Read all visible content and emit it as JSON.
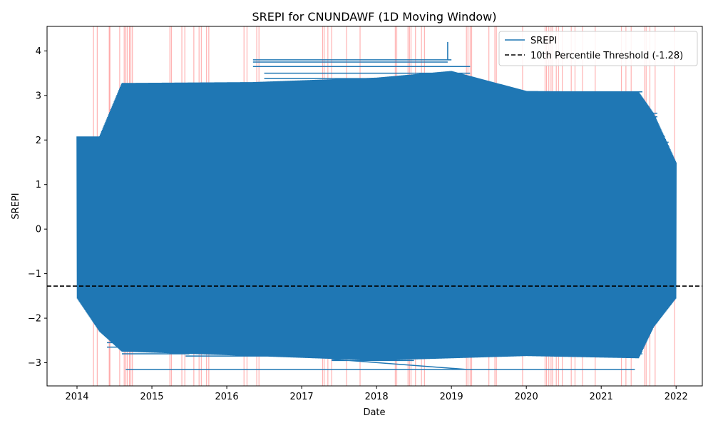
{
  "chart_data": {
    "type": "line",
    "title": "SREPI for CNUNDAWF (1D Moving Window)",
    "xlabel": "Date",
    "ylabel": "SREPI",
    "x_ticks": [
      "2014",
      "2015",
      "2016",
      "2017",
      "2018",
      "2019",
      "2020",
      "2021",
      "2022"
    ],
    "y_ticks": [
      "−3",
      "−2",
      "−1",
      "0",
      "1",
      "2",
      "3",
      "4"
    ],
    "x_range_years": [
      2013.6,
      2022.35
    ],
    "y_range": [
      -3.52,
      4.55
    ],
    "grid": false,
    "legend_position": "upper right",
    "series": [
      {
        "name": "SREPI",
        "color": "#1f77b4",
        "style": "solid",
        "description_points": [
          {
            "year": 2014.0,
            "min": -1.55,
            "max": 2.08
          },
          {
            "year": 2014.3,
            "min": -2.3,
            "max": 2.08
          },
          {
            "year": 2014.6,
            "min": -2.75,
            "max": 3.28
          },
          {
            "year": 2016.35,
            "min": -2.85,
            "max": 3.3
          },
          {
            "year": 2018.0,
            "min": -2.95,
            "max": 3.4
          },
          {
            "year": 2019.0,
            "min": -2.9,
            "max": 3.55
          },
          {
            "year": 2020.0,
            "min": -2.85,
            "max": 3.1
          },
          {
            "year": 2021.5,
            "min": -2.9,
            "max": 3.08
          },
          {
            "year": 2021.7,
            "min": -2.2,
            "max": 2.6
          },
          {
            "year": 2022.0,
            "min": -1.55,
            "max": 1.5
          }
        ],
        "spike": {
          "year": 2018.95,
          "max": 4.2
        },
        "min_line": {
          "from_year": 2014.65,
          "to_year": 2021.45,
          "value": -3.15
        }
      },
      {
        "name": "10th Percentile Threshold (-1.28)",
        "color": "#000000",
        "style": "dashed",
        "value": -1.28
      }
    ],
    "highlight_lines": {
      "color": "#ff0000",
      "opacity": 0.3,
      "years": [
        2014.22,
        2014.27,
        2014.43,
        2014.44,
        2014.57,
        2014.63,
        2014.65,
        2014.67,
        2014.7,
        2014.72,
        2014.74,
        2015.24,
        2015.26,
        2015.4,
        2015.44,
        2015.56,
        2015.63,
        2015.66,
        2015.73,
        2015.76,
        2016.23,
        2016.27,
        2016.4,
        2016.43,
        2017.28,
        2017.3,
        2017.35,
        2017.4,
        2017.6,
        2017.78,
        2018.25,
        2018.27,
        2018.42,
        2018.44,
        2018.46,
        2018.52,
        2018.6,
        2018.64,
        2019.2,
        2019.22,
        2019.25,
        2019.27,
        2019.5,
        2019.58,
        2019.6,
        2019.95,
        2020.25,
        2020.27,
        2020.3,
        2020.33,
        2020.35,
        2020.4,
        2020.43,
        2020.48,
        2020.6,
        2020.65,
        2020.75,
        2020.92,
        2021.27,
        2021.33,
        2021.4,
        2021.58,
        2021.6,
        2021.65,
        2021.72,
        2021.98
      ]
    }
  }
}
